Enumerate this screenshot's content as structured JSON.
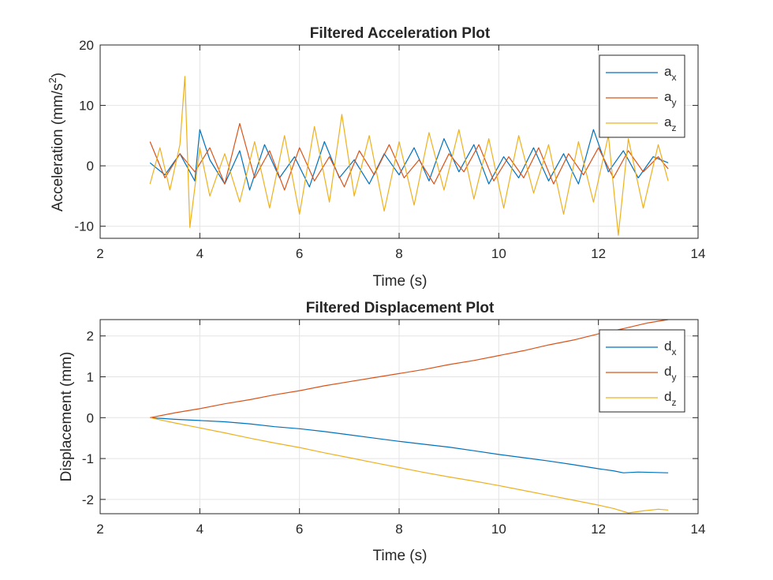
{
  "colors": {
    "blue": "#0072BD",
    "orange": "#D95319",
    "yellow": "#EDB120"
  },
  "chart_data": [
    {
      "type": "line",
      "title": "Filtered Acceleration Plot",
      "xlabel": "Time (s)",
      "ylabel": "Acceleration (mm/s²)",
      "ylabel_parts": {
        "main": "Acceleration (mm/s",
        "sup": "2",
        "end": ")"
      },
      "xlim": [
        2,
        14
      ],
      "ylim": [
        -12,
        20
      ],
      "xticks": [
        2,
        4,
        6,
        8,
        10,
        12,
        14
      ],
      "xtick_labels": [
        "2",
        "4",
        "6",
        "8",
        "10",
        "12",
        "14"
      ],
      "yticks": [
        -10,
        0,
        10,
        20
      ],
      "ytick_labels": [
        "-10",
        "0",
        "10",
        "20"
      ],
      "grid": true,
      "legend_position": "top-right",
      "series": [
        {
          "name": "a_x",
          "label_main": "a",
          "label_sub": "x",
          "color": "#0072BD",
          "x": [
            3.0,
            3.3,
            3.6,
            3.9,
            4.0,
            4.2,
            4.5,
            4.8,
            5.0,
            5.3,
            5.6,
            5.9,
            6.2,
            6.5,
            6.8,
            7.1,
            7.4,
            7.7,
            8.0,
            8.3,
            8.6,
            8.9,
            9.2,
            9.5,
            9.8,
            10.1,
            10.4,
            10.7,
            11.0,
            11.3,
            11.6,
            11.9,
            12.2,
            12.5,
            12.8,
            13.1,
            13.4
          ],
          "y": [
            0.5,
            -1.5,
            2.0,
            -2.5,
            6.0,
            1.0,
            -3.0,
            2.5,
            -4.0,
            3.5,
            -2.0,
            1.5,
            -3.5,
            4.0,
            -2.0,
            1.0,
            -3.0,
            2.0,
            -1.5,
            3.0,
            -2.5,
            4.5,
            -1.0,
            3.5,
            -3.0,
            1.5,
            -2.0,
            3.0,
            -2.5,
            2.0,
            -3.0,
            6.0,
            -1.0,
            2.5,
            -2.0,
            1.5,
            0.5
          ]
        },
        {
          "name": "a_y",
          "label_main": "a",
          "label_sub": "y",
          "color": "#D95319",
          "x": [
            3.0,
            3.3,
            3.6,
            3.9,
            4.2,
            4.5,
            4.8,
            5.1,
            5.4,
            5.7,
            6.0,
            6.3,
            6.6,
            6.9,
            7.2,
            7.5,
            7.8,
            8.1,
            8.4,
            8.7,
            9.0,
            9.3,
            9.6,
            9.9,
            10.2,
            10.5,
            10.8,
            11.1,
            11.4,
            11.7,
            12.0,
            12.3,
            12.6,
            12.9,
            13.2,
            13.4
          ],
          "y": [
            4.0,
            -2.0,
            2.0,
            -1.0,
            3.0,
            -3.0,
            7.0,
            -2.0,
            2.5,
            -4.0,
            3.0,
            -2.5,
            1.5,
            -3.5,
            2.5,
            -1.5,
            3.5,
            -2.0,
            1.0,
            -3.0,
            2.0,
            -1.0,
            3.5,
            -2.5,
            1.5,
            -2.0,
            3.0,
            -3.0,
            2.0,
            -1.5,
            3.0,
            -2.0,
            2.5,
            -1.0,
            1.5,
            -0.5
          ]
        },
        {
          "name": "a_z",
          "label_main": "a",
          "label_sub": "z",
          "color": "#EDB120",
          "x": [
            3.0,
            3.2,
            3.4,
            3.6,
            3.7,
            3.8,
            4.0,
            4.2,
            4.5,
            4.8,
            5.1,
            5.4,
            5.7,
            6.0,
            6.3,
            6.6,
            6.85,
            7.1,
            7.4,
            7.7,
            8.0,
            8.3,
            8.6,
            8.9,
            9.2,
            9.5,
            9.8,
            10.1,
            10.4,
            10.7,
            11.0,
            11.3,
            11.6,
            11.9,
            12.2,
            12.4,
            12.6,
            12.9,
            13.2,
            13.4
          ],
          "y": [
            -3.0,
            3.0,
            -4.0,
            3.5,
            14.8,
            -10.2,
            3.0,
            -5.0,
            2.0,
            -6.0,
            4.0,
            -7.0,
            5.0,
            -8.0,
            6.5,
            -6.0,
            8.5,
            -5.0,
            5.0,
            -7.5,
            4.0,
            -6.5,
            5.5,
            -4.0,
            6.0,
            -5.5,
            4.5,
            -7.0,
            5.0,
            -4.5,
            3.5,
            -8.0,
            4.0,
            -6.0,
            5.0,
            -11.5,
            4.5,
            -7.0,
            3.5,
            -2.5
          ]
        }
      ]
    },
    {
      "type": "line",
      "title": "Filtered Displacement Plot",
      "xlabel": "Time (s)",
      "ylabel": "Displacement (mm)",
      "xlim": [
        2,
        14
      ],
      "ylim": [
        -2.35,
        2.4
      ],
      "xticks": [
        2,
        4,
        6,
        8,
        10,
        12,
        14
      ],
      "xtick_labels": [
        "2",
        "4",
        "6",
        "8",
        "10",
        "12",
        "14"
      ],
      "yticks": [
        -2,
        -1,
        0,
        1,
        2
      ],
      "ytick_labels": [
        "-2",
        "-1",
        "0",
        "1",
        "2"
      ],
      "grid": true,
      "legend_position": "top-right",
      "series": [
        {
          "name": "d_x",
          "label_main": "d",
          "label_sub": "x",
          "color": "#0072BD",
          "x": [
            3.0,
            3.5,
            4.0,
            4.5,
            5.0,
            5.5,
            6.0,
            6.5,
            7.0,
            7.5,
            8.0,
            8.5,
            9.0,
            9.5,
            10.0,
            10.5,
            11.0,
            11.5,
            12.0,
            12.3,
            12.5,
            12.8,
            13.1,
            13.4
          ],
          "y": [
            0.0,
            -0.04,
            -0.07,
            -0.1,
            -0.15,
            -0.22,
            -0.27,
            -0.34,
            -0.42,
            -0.5,
            -0.58,
            -0.65,
            -0.72,
            -0.81,
            -0.9,
            -0.98,
            -1.06,
            -1.15,
            -1.25,
            -1.3,
            -1.35,
            -1.33,
            -1.34,
            -1.35
          ]
        },
        {
          "name": "d_y",
          "label_main": "d",
          "label_sub": "y",
          "color": "#D95319",
          "x": [
            3.0,
            3.5,
            4.0,
            4.5,
            5.0,
            5.5,
            6.0,
            6.5,
            7.0,
            7.5,
            8.0,
            8.5,
            9.0,
            9.5,
            10.0,
            10.5,
            11.0,
            11.5,
            12.0,
            12.5,
            13.0,
            13.4
          ],
          "y": [
            0.0,
            0.12,
            0.22,
            0.34,
            0.44,
            0.56,
            0.66,
            0.78,
            0.88,
            0.98,
            1.08,
            1.18,
            1.3,
            1.4,
            1.52,
            1.64,
            1.78,
            1.9,
            2.05,
            2.18,
            2.32,
            2.4
          ]
        },
        {
          "name": "d_z",
          "label_main": "d",
          "label_sub": "z",
          "color": "#EDB120",
          "x": [
            3.0,
            3.5,
            4.0,
            4.5,
            5.0,
            5.5,
            6.0,
            6.5,
            7.0,
            7.5,
            8.0,
            8.5,
            9.0,
            9.5,
            10.0,
            10.5,
            11.0,
            11.5,
            12.0,
            12.3,
            12.6,
            12.9,
            13.2,
            13.4
          ],
          "y": [
            0.0,
            -0.13,
            -0.25,
            -0.37,
            -0.5,
            -0.62,
            -0.73,
            -0.86,
            -0.98,
            -1.1,
            -1.22,
            -1.34,
            -1.45,
            -1.55,
            -1.66,
            -1.78,
            -1.9,
            -2.02,
            -2.14,
            -2.22,
            -2.33,
            -2.28,
            -2.24,
            -2.26
          ]
        }
      ]
    }
  ]
}
